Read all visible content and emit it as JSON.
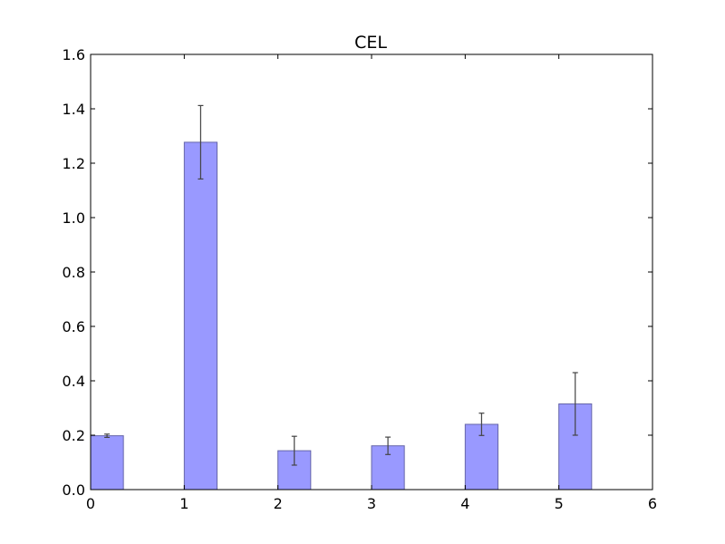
{
  "chart_data": {
    "type": "bar",
    "title": "CEL",
    "xlabel": "",
    "ylabel": "",
    "x": [
      0,
      1,
      2,
      3,
      4,
      5
    ],
    "values": [
      0.198,
      1.277,
      0.143,
      0.161,
      0.24,
      0.315
    ],
    "errors": [
      0.006,
      0.135,
      0.053,
      0.032,
      0.041,
      0.115
    ],
    "bar_start_offset": 0,
    "bar_width": 0.35,
    "xlim": [
      0,
      6
    ],
    "ylim": [
      0,
      1.6
    ],
    "xticks": [
      0,
      1,
      2,
      3,
      4,
      5,
      6
    ],
    "yticks": [
      0.0,
      0.2,
      0.4,
      0.6,
      0.8,
      1.0,
      1.2,
      1.4,
      1.6
    ],
    "xtick_labels": [
      "0",
      "1",
      "2",
      "3",
      "4",
      "5",
      "6"
    ],
    "ytick_labels": [
      "0.0",
      "0.2",
      "0.4",
      "0.6",
      "0.8",
      "1.0",
      "1.2",
      "1.4",
      "1.6"
    ],
    "grid": false,
    "legend": "none",
    "colors": {
      "bar_fill": "#9999ff",
      "bar_stroke": "#6666aa",
      "error_bar": "#444444",
      "axes": "#000000"
    }
  }
}
